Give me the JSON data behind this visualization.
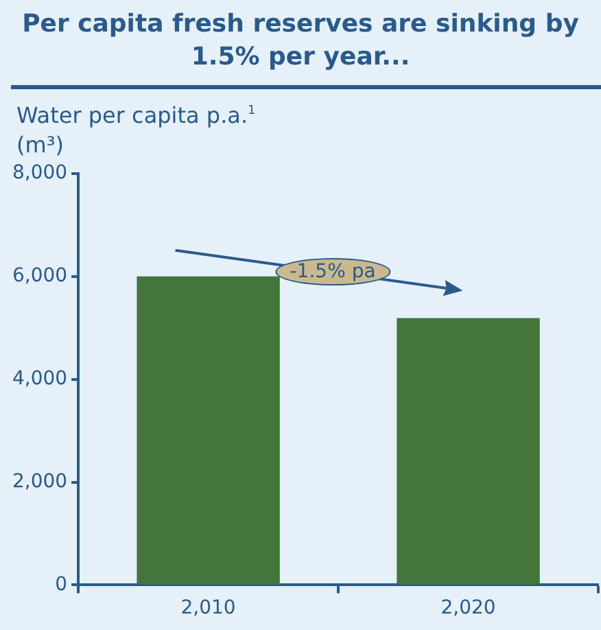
{
  "chart_data": {
    "type": "bar",
    "title": "Per capita fresh reserves are sinking by 1.5% per year...",
    "ylabel": "Water per capita p.a.$^{1}$ (m³)",
    "categories": [
      "2,010",
      "2,020"
    ],
    "values": [
      6000,
      5190
    ],
    "color": "#43763a",
    "ylim": [
      0,
      8000
    ],
    "yticks": [
      {
        "value": 0,
        "label": "0"
      },
      {
        "value": 2000,
        "label": "2,000"
      },
      {
        "value": 4000,
        "label": "4,000"
      },
      {
        "value": 6000,
        "label": "6,000"
      },
      {
        "value": 8000,
        "label": "8,000"
      }
    ],
    "annotations": [
      "-1.5% pa"
    ],
    "grid": false,
    "legend": false
  }
}
